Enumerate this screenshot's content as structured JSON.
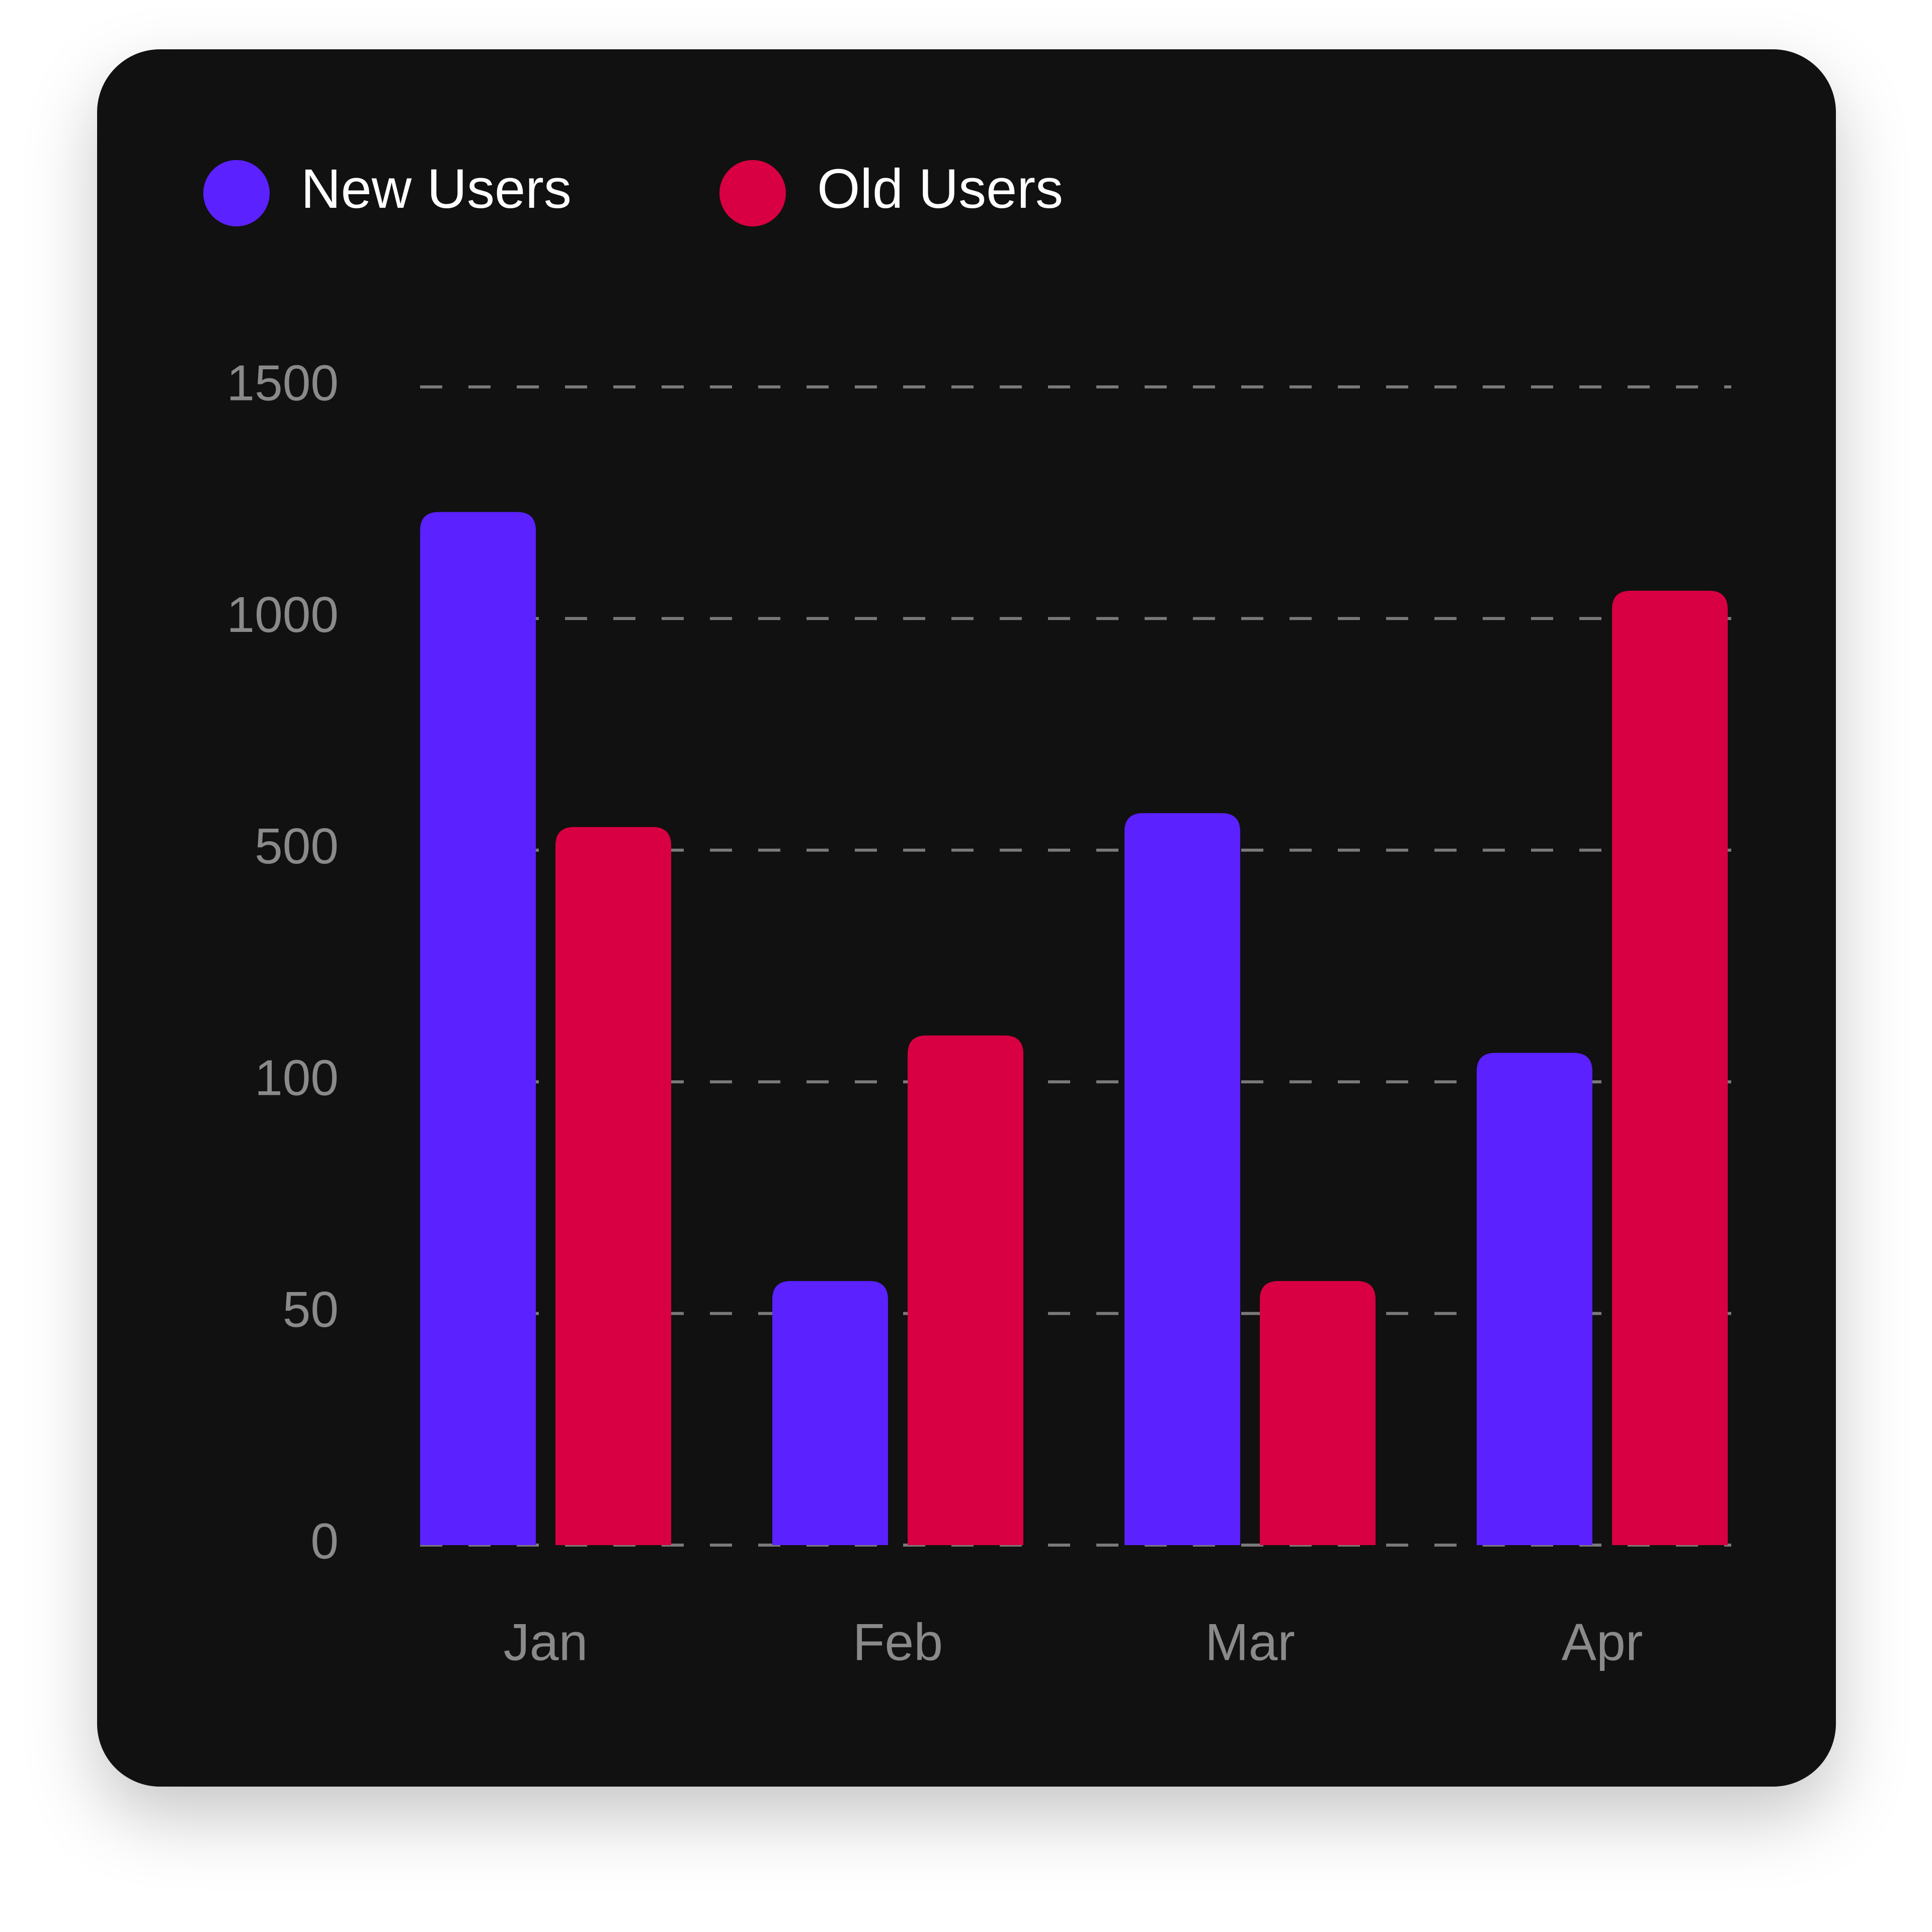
{
  "chart_data": {
    "type": "bar",
    "categories": [
      "Jan",
      "Feb",
      "Mar",
      "Apr"
    ],
    "series": [
      {
        "name": "New Users",
        "color": "#5b21ff",
        "values": [
          1230,
          57,
          580,
          150
        ]
      },
      {
        "name": "Old Users",
        "color": "#d80042",
        "values": [
          550,
          180,
          57,
          1060
        ]
      }
    ],
    "ylim": [
      0,
      1500
    ],
    "yticks": [
      0,
      50,
      100,
      500,
      1000,
      1500
    ],
    "grid": true,
    "legend": "top-left"
  }
}
